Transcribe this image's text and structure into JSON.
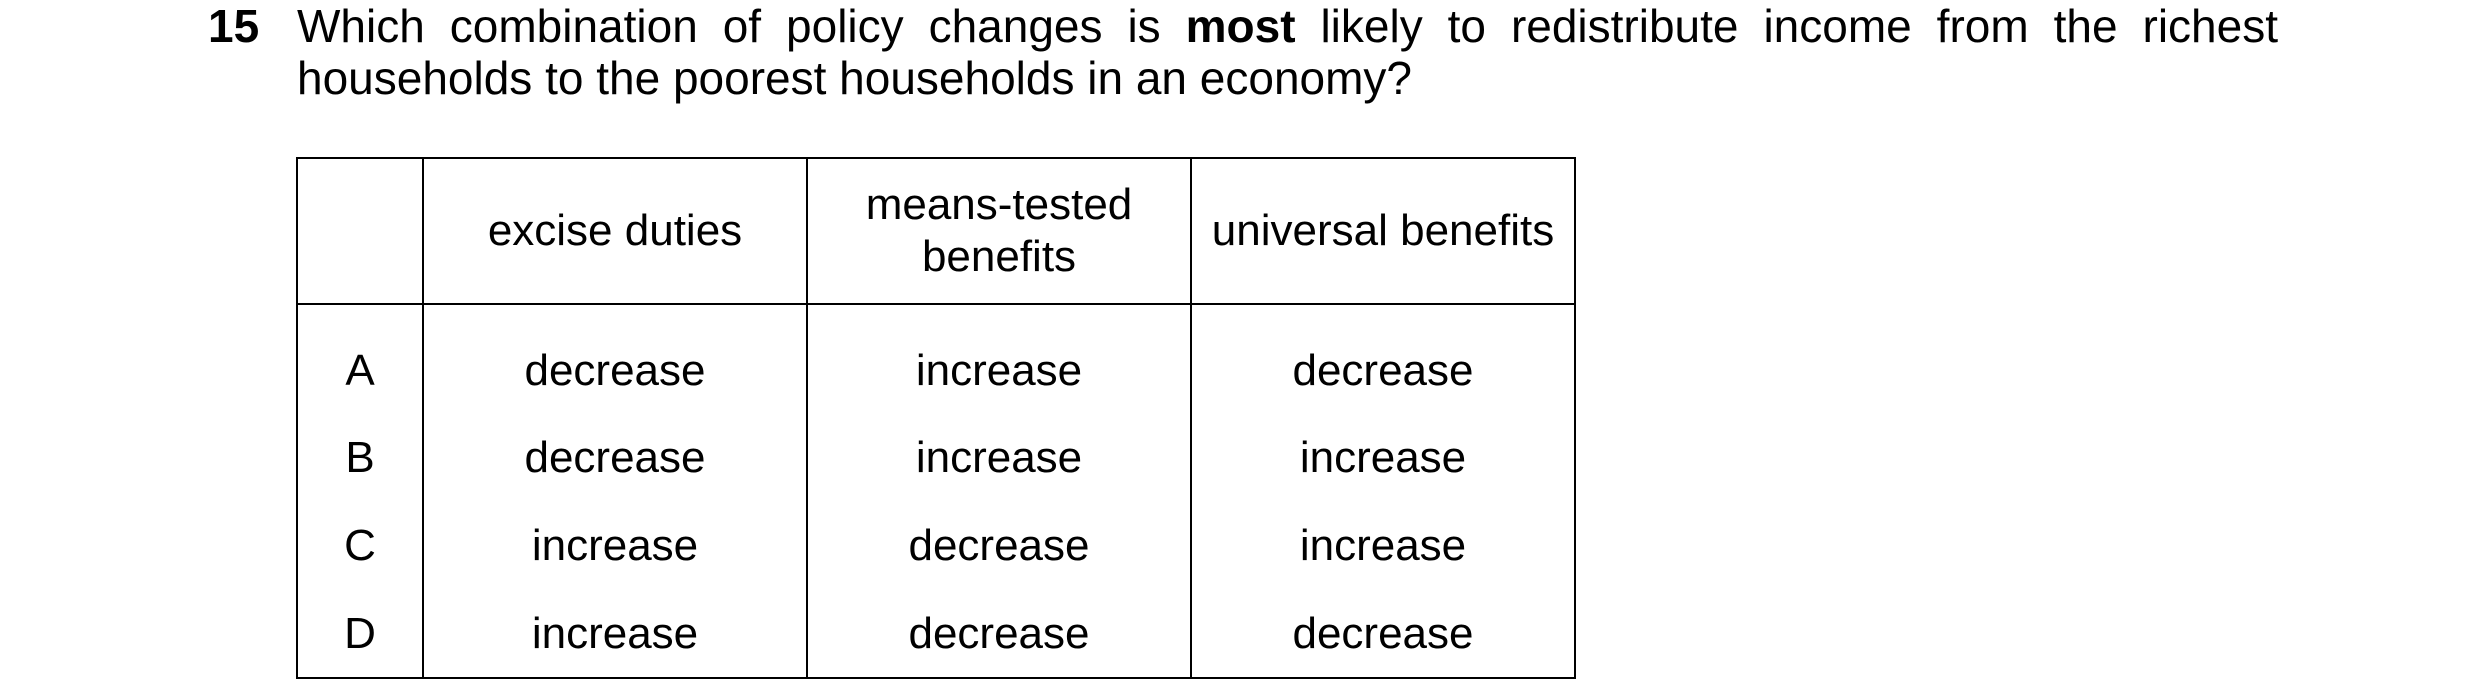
{
  "question": {
    "number": "15",
    "text_before": "Which combination of policy changes is ",
    "text_bold": "most",
    "text_after": " likely to redistribute income from the richest households to the poorest households in an economy?"
  },
  "table": {
    "headers": [
      "",
      "excise duties",
      "means-tested benefits",
      "universal benefits"
    ],
    "rows": [
      {
        "option": "A",
        "excise_duties": "decrease",
        "means_tested_benefits": "increase",
        "universal_benefits": "decrease"
      },
      {
        "option": "B",
        "excise_duties": "decrease",
        "means_tested_benefits": "increase",
        "universal_benefits": "increase"
      },
      {
        "option": "C",
        "excise_duties": "increase",
        "means_tested_benefits": "decrease",
        "universal_benefits": "increase"
      },
      {
        "option": "D",
        "excise_duties": "increase",
        "means_tested_benefits": "decrease",
        "universal_benefits": "decrease"
      }
    ]
  }
}
